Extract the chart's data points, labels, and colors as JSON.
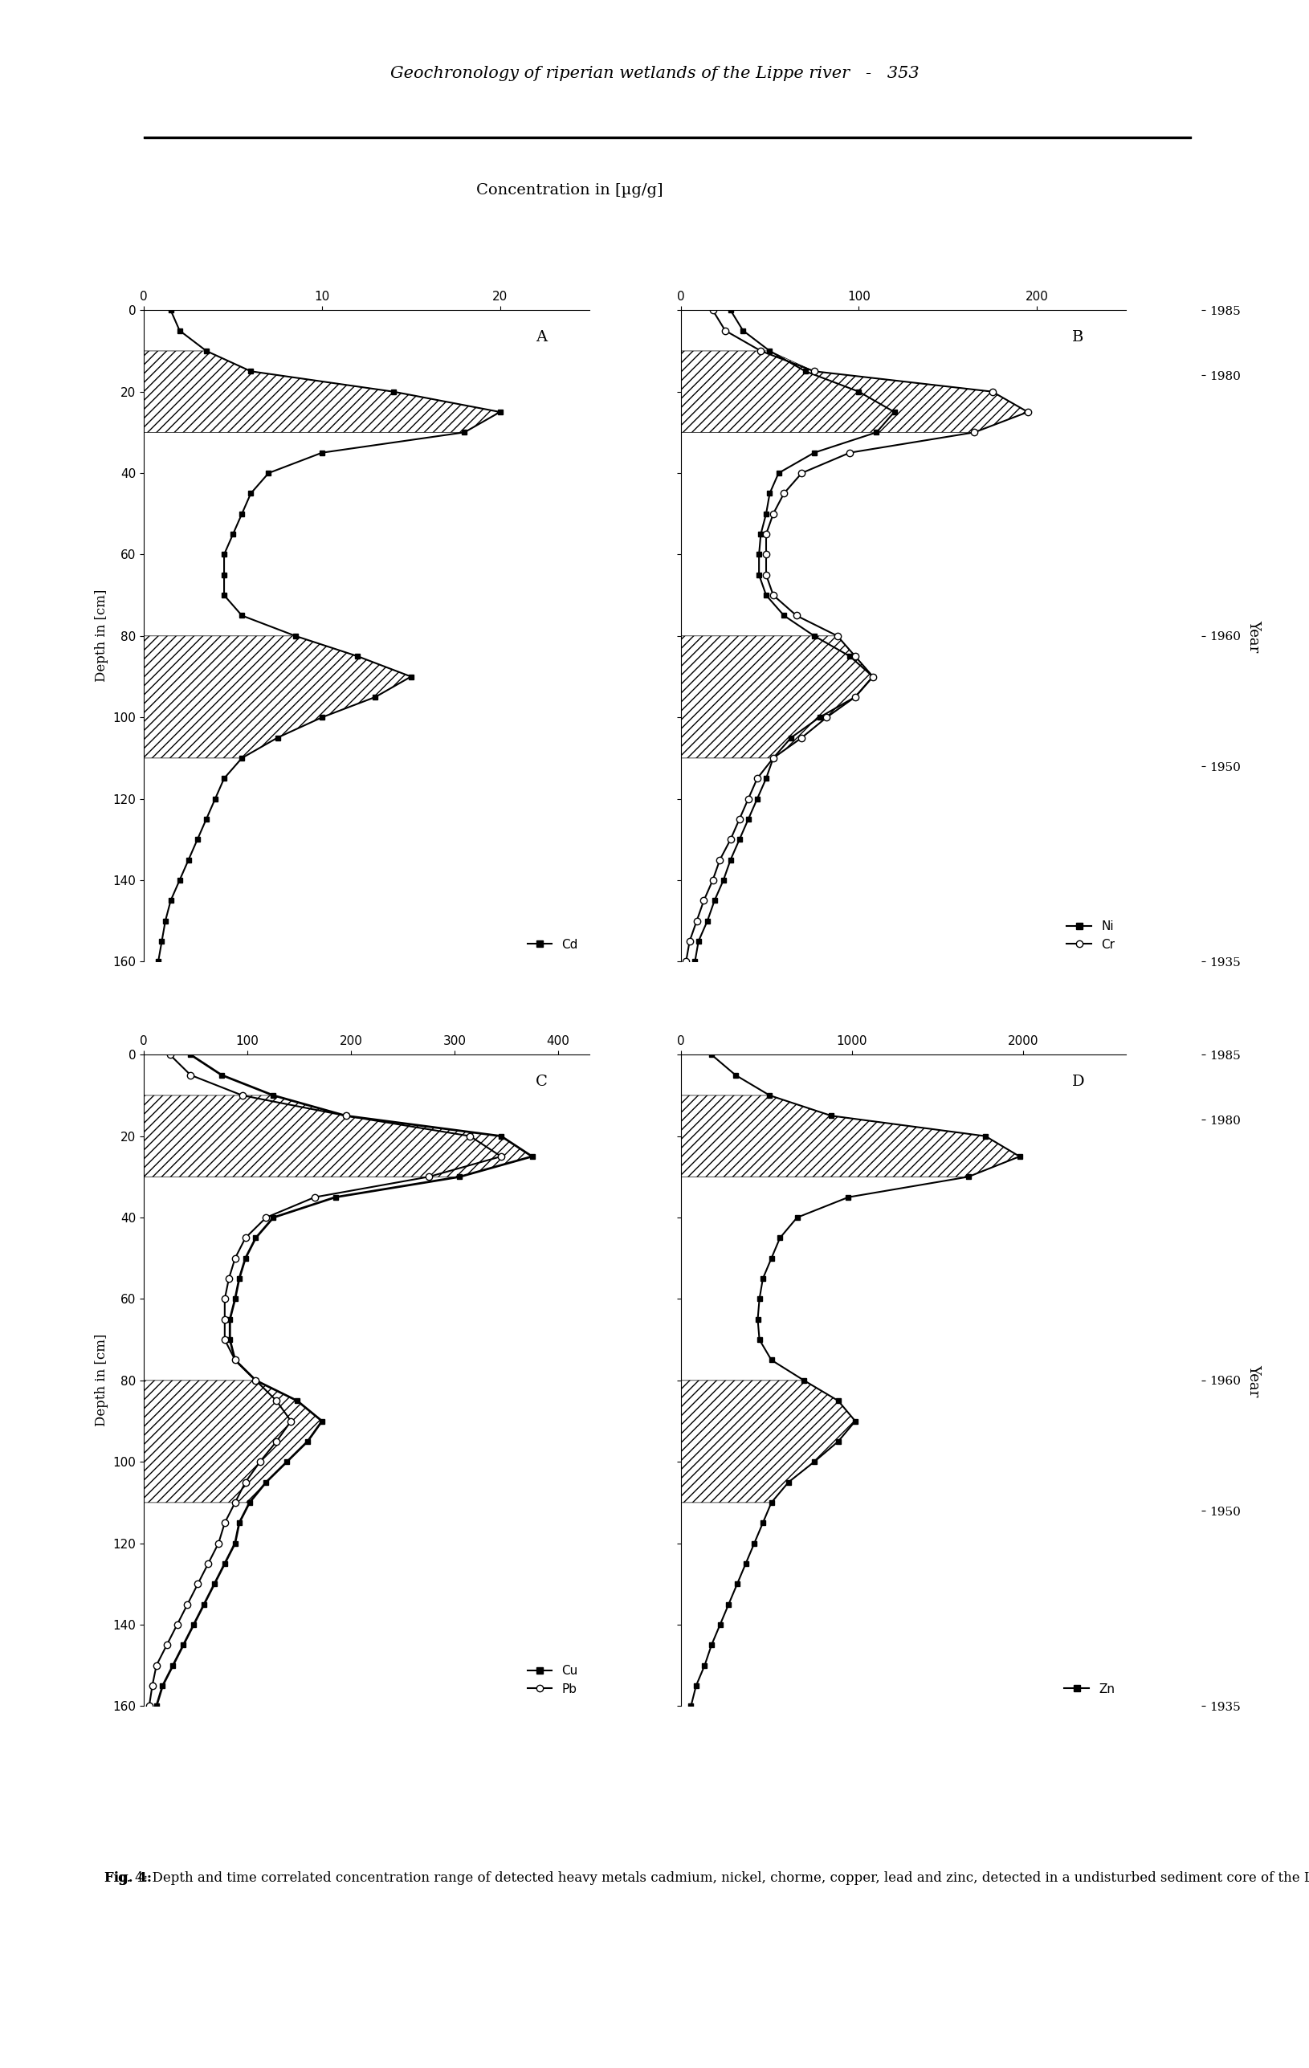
{
  "page_header": "Geochronology of riperian wetlands of the Lippe river   -   353",
  "concentration_label": "Concentration in [µg/g]",
  "depth_label": "Depth in [cm]",
  "year_label": "Year",
  "fig_caption_bold": "Fig. 4:",
  "fig_caption_rest": " Depth and time correlated concentration range of detected heavy metals cadmium, nickel, chorme, copper, lead and zinc, detected in a undisturbed sediment core of the Lippe river (Germany).",
  "depth_ticks": [
    0,
    20,
    40,
    60,
    80,
    100,
    120,
    140,
    160
  ],
  "year_tick_years": [
    1985,
    1980,
    1960,
    1950,
    1935
  ],
  "panel_A": {
    "label": "A",
    "xlabel_ticks": [
      0,
      10,
      20
    ],
    "xlim": [
      0,
      25
    ],
    "legend": "Cd",
    "cd_depth": [
      0,
      5,
      10,
      15,
      20,
      25,
      30,
      35,
      40,
      45,
      50,
      55,
      60,
      65,
      70,
      75,
      80,
      85,
      90,
      95,
      100,
      105,
      110,
      115,
      120,
      125,
      130,
      135,
      140,
      145,
      150,
      155,
      160
    ],
    "cd_conc": [
      1.5,
      2.0,
      3.5,
      6.0,
      14.0,
      20.0,
      18.0,
      10.0,
      7.0,
      6.0,
      5.5,
      5.0,
      4.5,
      4.5,
      4.5,
      5.5,
      8.5,
      12.0,
      15.0,
      13.0,
      10.0,
      7.5,
      5.5,
      4.5,
      4.0,
      3.5,
      3.0,
      2.5,
      2.0,
      1.5,
      1.2,
      1.0,
      0.8
    ],
    "hatch_d1_start": 10,
    "hatch_d1_end": 30,
    "hatch_d2_start": 80,
    "hatch_d2_end": 110
  },
  "panel_B": {
    "label": "B",
    "xlabel_ticks": [
      0,
      100,
      200
    ],
    "xlim": [
      0,
      250
    ],
    "legend_ni": "Ni",
    "legend_cr": "Cr",
    "ni_depth": [
      0,
      5,
      10,
      15,
      20,
      25,
      30,
      35,
      40,
      45,
      50,
      55,
      60,
      65,
      70,
      75,
      80,
      85,
      90,
      95,
      100,
      105,
      110,
      115,
      120,
      125,
      130,
      135,
      140,
      145,
      150,
      155,
      160
    ],
    "ni_conc": [
      28,
      35,
      50,
      70,
      100,
      120,
      110,
      75,
      55,
      50,
      48,
      45,
      44,
      44,
      48,
      58,
      75,
      95,
      108,
      98,
      78,
      62,
      52,
      48,
      43,
      38,
      33,
      28,
      24,
      19,
      15,
      10,
      8
    ],
    "cr_depth": [
      0,
      5,
      10,
      15,
      20,
      25,
      30,
      35,
      40,
      45,
      50,
      55,
      60,
      65,
      70,
      75,
      80,
      85,
      90,
      95,
      100,
      105,
      110,
      115,
      120,
      125,
      130,
      135,
      140,
      145,
      150,
      155,
      160
    ],
    "cr_conc": [
      18,
      25,
      45,
      75,
      175,
      195,
      165,
      95,
      68,
      58,
      52,
      48,
      48,
      48,
      52,
      65,
      88,
      98,
      108,
      98,
      82,
      68,
      52,
      43,
      38,
      33,
      28,
      22,
      18,
      13,
      9,
      5,
      3
    ],
    "hatch_d1_start": 10,
    "hatch_d1_end": 30,
    "hatch_d2_start": 80,
    "hatch_d2_end": 110
  },
  "panel_C": {
    "label": "C",
    "xlabel_ticks": [
      0,
      100,
      200,
      300,
      400
    ],
    "xlim": [
      0,
      430
    ],
    "legend_cu": "Cu",
    "legend_pb": "Pb",
    "cu_depth": [
      0,
      5,
      10,
      15,
      20,
      25,
      30,
      35,
      40,
      45,
      50,
      55,
      60,
      65,
      70,
      75,
      80,
      85,
      90,
      95,
      100,
      105,
      110,
      115,
      120,
      125,
      130,
      135,
      140,
      145,
      150,
      155,
      160
    ],
    "cu_conc": [
      45,
      75,
      125,
      195,
      345,
      375,
      305,
      185,
      125,
      108,
      98,
      92,
      88,
      83,
      83,
      88,
      108,
      148,
      172,
      158,
      138,
      118,
      102,
      92,
      88,
      78,
      68,
      58,
      48,
      38,
      28,
      18,
      12
    ],
    "pb_depth": [
      0,
      5,
      10,
      15,
      20,
      25,
      30,
      35,
      40,
      45,
      50,
      55,
      60,
      65,
      70,
      75,
      80,
      85,
      90,
      95,
      100,
      105,
      110,
      115,
      120,
      125,
      130,
      135,
      140,
      145,
      150,
      155,
      160
    ],
    "pb_conc": [
      25,
      45,
      95,
      195,
      315,
      345,
      275,
      165,
      118,
      98,
      88,
      82,
      78,
      78,
      78,
      88,
      108,
      128,
      142,
      128,
      112,
      98,
      88,
      78,
      72,
      62,
      52,
      42,
      32,
      22,
      12,
      8,
      5
    ],
    "hatch_d1_start": 10,
    "hatch_d1_end": 30,
    "hatch_d2_start": 80,
    "hatch_d2_end": 110
  },
  "panel_D": {
    "label": "D",
    "xlabel_ticks": [
      0,
      1000,
      2000
    ],
    "xlim": [
      0,
      2600
    ],
    "legend_zn": "Zn",
    "zn_depth": [
      0,
      5,
      10,
      15,
      20,
      25,
      30,
      35,
      40,
      45,
      50,
      55,
      60,
      65,
      70,
      75,
      80,
      85,
      90,
      95,
      100,
      105,
      110,
      115,
      120,
      125,
      130,
      135,
      140,
      145,
      150,
      155,
      160
    ],
    "zn_conc": [
      180,
      320,
      520,
      880,
      1780,
      1980,
      1680,
      980,
      680,
      580,
      530,
      480,
      460,
      450,
      460,
      530,
      720,
      920,
      1020,
      920,
      780,
      630,
      530,
      480,
      430,
      380,
      330,
      280,
      230,
      180,
      140,
      90,
      60
    ],
    "hatch_d1_start": 10,
    "hatch_d1_end": 30,
    "hatch_d2_start": 80,
    "hatch_d2_end": 110
  },
  "background_color": "#ffffff"
}
